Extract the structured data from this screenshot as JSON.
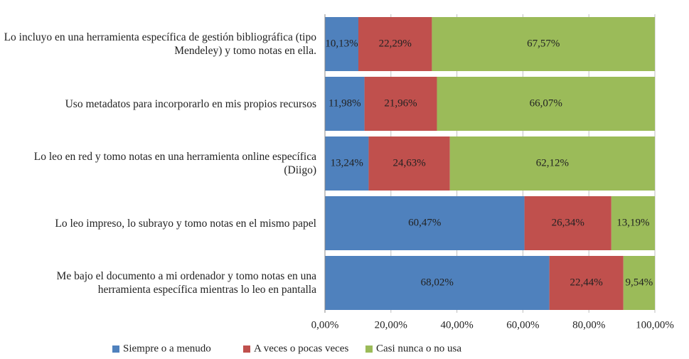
{
  "chart_data": {
    "type": "stacked_bar_horizontal",
    "categories": [
      "Lo incluyo en una herramienta específica de gestión bibliográfica (tipo Mendeley) y tomo notas en ella.",
      "Uso metadatos para incorporarlo en mis propios recursos",
      "Lo leo en red y tomo notas en una herramienta online específica (Diigo)",
      "Lo leo impreso, lo subrayo y tomo notas en el mismo papel",
      "Me bajo el documento a mi ordenador y tomo notas en una herramienta específica mientras lo leo en pantalla"
    ],
    "series": [
      {
        "name": "Siempre o a menudo",
        "color": "#4f81bd",
        "values": [
          10.13,
          11.98,
          13.24,
          60.47,
          68.02
        ],
        "value_labels": [
          "10,13%",
          "11,98%",
          "13,24%",
          "60,47%",
          "68,02%"
        ]
      },
      {
        "name": "A veces o pocas veces",
        "color": "#c0504d",
        "values": [
          22.29,
          21.96,
          24.63,
          26.34,
          22.44
        ],
        "value_labels": [
          "22,29%",
          "21,96%",
          "24,63%",
          "26,34%",
          "22,44%"
        ]
      },
      {
        "name": "Casi nunca o no usa",
        "color": "#9bbb59",
        "values": [
          67.57,
          66.07,
          62.12,
          13.19,
          9.54
        ],
        "value_labels": [
          "67,57%",
          "66,07%",
          "62,12%",
          "13,19%",
          "9,54%"
        ]
      }
    ],
    "xlim": [
      0,
      100
    ],
    "xticks": [
      {
        "value": 0,
        "label": "0,00%"
      },
      {
        "value": 20,
        "label": "20,00%"
      },
      {
        "value": 40,
        "label": "40,00%"
      },
      {
        "value": 60,
        "label": "60,00%"
      },
      {
        "value": 80,
        "label": "80,00%"
      },
      {
        "value": 100,
        "label": "100,00%"
      }
    ],
    "grid": true,
    "legend": "bottom"
  }
}
